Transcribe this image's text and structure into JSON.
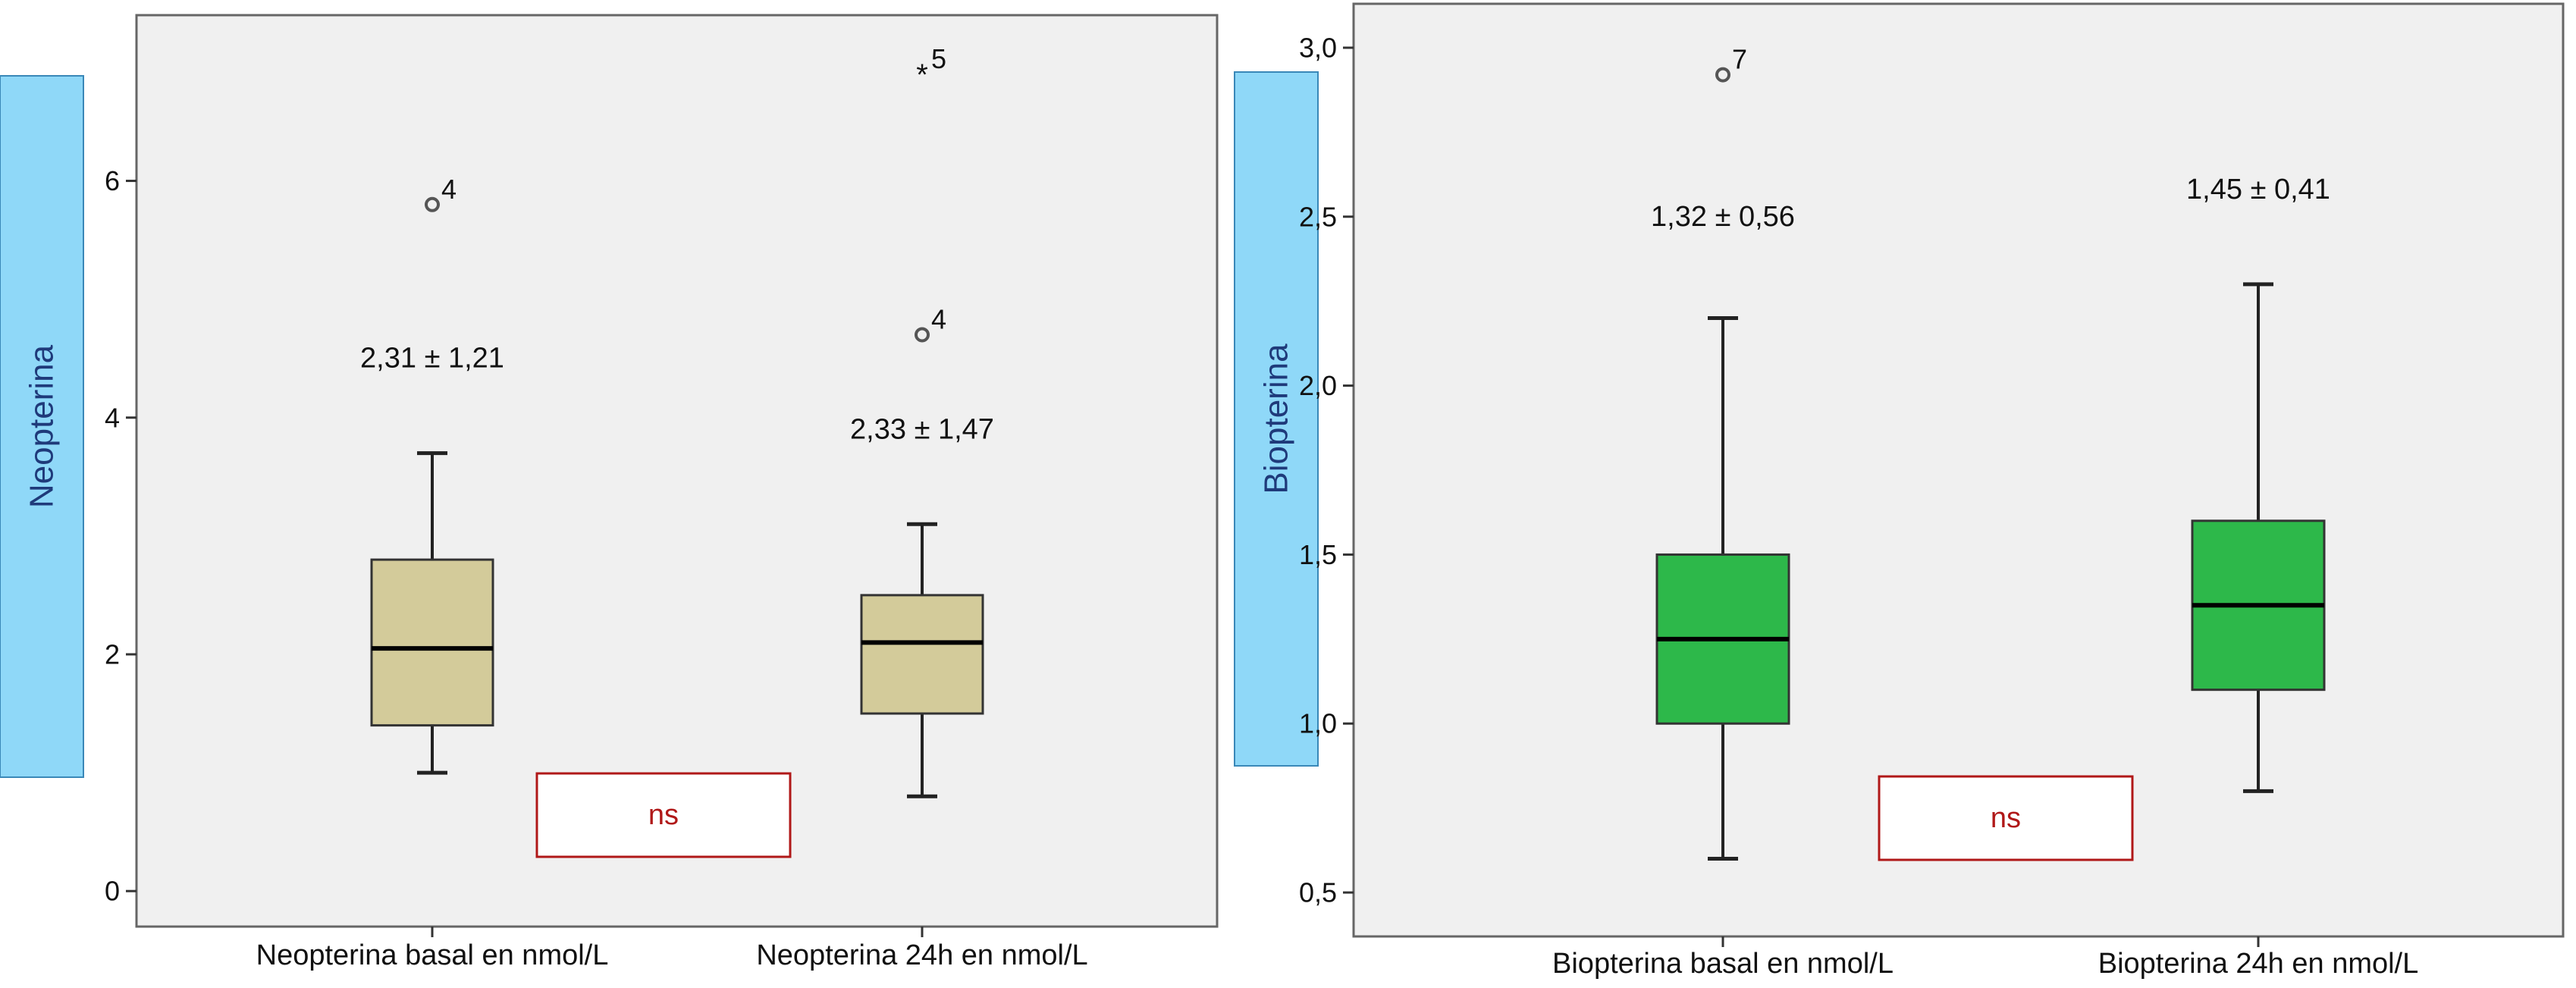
{
  "chart_data": [
    {
      "type": "boxplot",
      "ylabel": "Neopterina",
      "ylim": [
        -0.3,
        7.4
      ],
      "yticks": [
        0,
        2,
        4,
        6
      ],
      "ytick_labels": [
        "0",
        "2",
        "4",
        "6"
      ],
      "categories": [
        "Neopterina basal en nmol/L",
        "Neopterina 24h en nmol/L"
      ],
      "boxes": [
        {
          "whisker_low": 1.0,
          "q1": 1.4,
          "median": 2.05,
          "q3": 2.8,
          "whisker_high": 3.7
        },
        {
          "whisker_low": 0.8,
          "q1": 1.5,
          "median": 2.1,
          "q3": 2.5,
          "whisker_high": 3.1
        }
      ],
      "outliers": [
        {
          "cat": 0,
          "y": 5.8,
          "label": "4",
          "marker": "circle"
        },
        {
          "cat": 1,
          "y": 4.7,
          "label": "4",
          "marker": "circle"
        },
        {
          "cat": 1,
          "y": 6.9,
          "label": "5",
          "marker": "star"
        }
      ],
      "annotations": [
        {
          "cat": 0,
          "y": 4.5,
          "text": "2,31 ± 1,21"
        },
        {
          "cat": 1,
          "y": 3.9,
          "text": "2,33 ± 1,47"
        }
      ],
      "significance": "ns",
      "box_color": "#d3cb9a",
      "grid": false
    },
    {
      "type": "boxplot",
      "ylabel": "Biopterina",
      "ylim": [
        0.37,
        3.13
      ],
      "yticks": [
        0.5,
        1.0,
        1.5,
        2.0,
        2.5,
        3.0
      ],
      "ytick_labels": [
        "0,5",
        "1,0",
        "1,5",
        "2,0",
        "2,5",
        "3,0"
      ],
      "categories": [
        "Biopterina basal en nmol/L",
        "Biopterina 24h en nmol/L"
      ],
      "boxes": [
        {
          "whisker_low": 0.6,
          "q1": 1.0,
          "median": 1.25,
          "q3": 1.5,
          "whisker_high": 2.2
        },
        {
          "whisker_low": 0.8,
          "q1": 1.1,
          "median": 1.35,
          "q3": 1.6,
          "whisker_high": 2.3
        }
      ],
      "outliers": [
        {
          "cat": 0,
          "y": 2.92,
          "label": "7",
          "marker": "circle"
        }
      ],
      "annotations": [
        {
          "cat": 0,
          "y": 2.5,
          "text": "1,32 ± 0,56"
        },
        {
          "cat": 1,
          "y": 2.58,
          "text": "1,45 ± 0,41"
        }
      ],
      "significance": "ns",
      "box_color": "#2db84a",
      "grid": false
    }
  ],
  "colors": {
    "plot_background": "#f0f0f0",
    "ylabel_tab": "#8fd8f8",
    "ylabel_tab_text": "#1f3a7a",
    "significance_border": "#b01818",
    "significance_text": "#b01818"
  }
}
